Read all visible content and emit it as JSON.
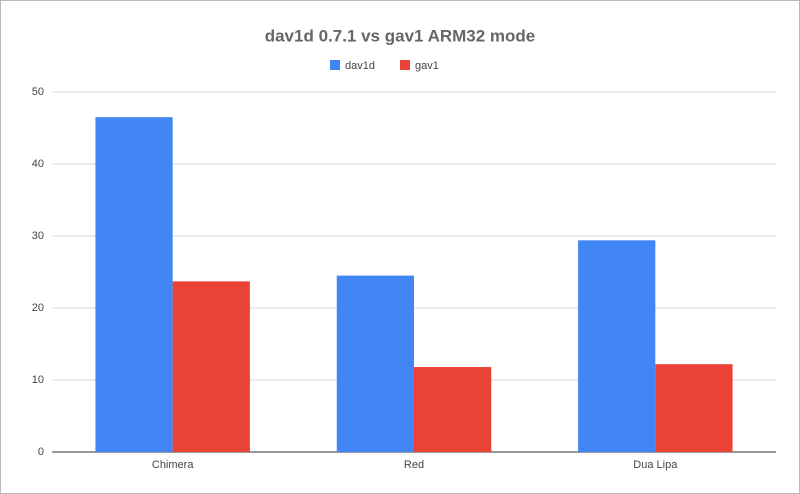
{
  "chart_data": {
    "type": "bar",
    "title": "dav1d 0.7.1 vs gav1 ARM32 mode",
    "categories": [
      "Chimera",
      "Red",
      "Dua Lipa"
    ],
    "series": [
      {
        "name": "dav1d",
        "color": "#4285f4",
        "values": [
          46.5,
          24.5,
          29.4
        ]
      },
      {
        "name": "gav1",
        "color": "#ea4335",
        "values": [
          23.7,
          11.8,
          12.2
        ]
      }
    ],
    "ylim": [
      0,
      50
    ],
    "yticks": [
      0,
      10,
      20,
      30,
      40,
      50
    ],
    "grid": true,
    "legend": "top"
  }
}
